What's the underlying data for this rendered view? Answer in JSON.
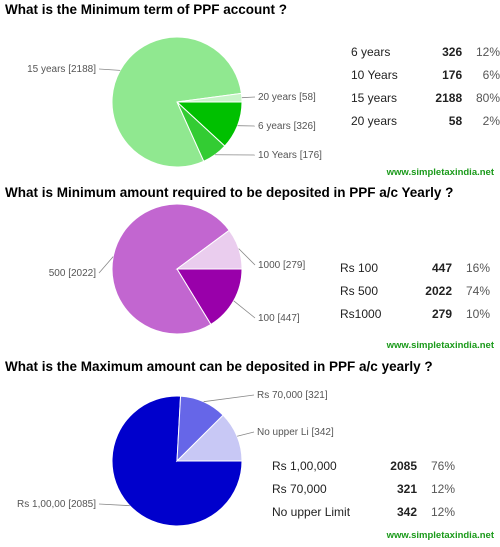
{
  "chart_data": [
    {
      "type": "pie",
      "title": "What is the Minimum term of PPF account ?",
      "slices": [
        {
          "label": "6 years",
          "chart_label": "6 years [326]",
          "value": 326,
          "percent": "12%",
          "color": "#00c000"
        },
        {
          "label": "10 Years",
          "chart_label": "10 Years [176]",
          "value": 176,
          "percent": "6%",
          "color": "#33cc33"
        },
        {
          "label": "15 years",
          "chart_label": "15 years [2188]",
          "value": 2188,
          "percent": "80%",
          "color": "#90e890"
        },
        {
          "label": "20 years",
          "chart_label": "20 years [58]",
          "value": 58,
          "percent": "2%",
          "color": "#c8f5c8"
        }
      ],
      "watermark": "www.simpletaxindia.net"
    },
    {
      "type": "pie",
      "title": "What is Minimum amount required to be deposited in PPF a/c Yearly ?",
      "slices": [
        {
          "label": "Rs 100",
          "chart_label": "100  [447]",
          "value": 447,
          "percent": "16%",
          "color": "#9900aa"
        },
        {
          "label": "Rs 500",
          "chart_label": "500 [2022]",
          "value": 2022,
          "percent": "74%",
          "color": "#c266d0"
        },
        {
          "label": "Rs1000",
          "chart_label": "1000 [279]",
          "value": 279,
          "percent": "10%",
          "color": "#eacdee"
        }
      ],
      "watermark": "www.simpletaxindia.net"
    },
    {
      "type": "pie",
      "title": "What is the Maximum amount can be deposited in PPF a/c yearly ?",
      "slices": [
        {
          "label": "Rs 1,00,000",
          "chart_label": "Rs 1,00,00 [2085]",
          "value": 2085,
          "percent": "76%",
          "color": "#0000cc"
        },
        {
          "label": "Rs 70,000",
          "chart_label": "Rs 70,000 [321]",
          "value": 321,
          "percent": "12%",
          "color": "#6666e8"
        },
        {
          "label": "No upper Limit",
          "chart_label": "No upper Li [342]",
          "value": 342,
          "percent": "12%",
          "color": "#c8c8f5"
        }
      ],
      "watermark": "www.simpletaxindia.net"
    }
  ]
}
